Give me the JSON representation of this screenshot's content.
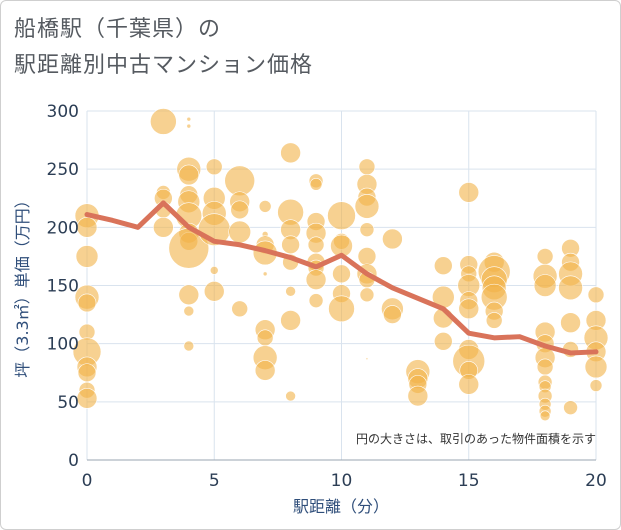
{
  "title_lines": [
    "船橋駅（千葉県）の",
    "駅距離別中古マンション価格"
  ],
  "colors": {
    "bubble": "#f2b348",
    "line": "#d9735a",
    "grid": "#d9e3ee",
    "axis_text": "#2c3e55",
    "axis_title": "#2f4e7a"
  },
  "chart_data": {
    "type": "scatter",
    "title": "船橋駅（千葉県）の駅距離別中古マンション価格",
    "xlabel": "駅距離（分）",
    "ylabel": "坪（3.3㎡）単価（万円）",
    "xlim": [
      0,
      20
    ],
    "ylim": [
      0,
      300
    ],
    "xticks": [
      0,
      5,
      10,
      15,
      20
    ],
    "yticks": [
      0,
      50,
      100,
      150,
      200,
      250,
      300
    ],
    "grid": true,
    "annotation": "円の大きさは、取引のあった物件面積を示す",
    "line": {
      "x": [
        0,
        1,
        2,
        3,
        4,
        5,
        6,
        7,
        8,
        9,
        10,
        11,
        12,
        13,
        14,
        15,
        16,
        17,
        18,
        19,
        20
      ],
      "y": [
        211,
        206,
        200,
        221,
        200,
        188,
        185,
        180,
        174,
        166,
        176,
        160,
        148,
        139,
        130,
        109,
        105,
        106,
        98,
        92,
        93
      ]
    },
    "bubbles": [
      {
        "x": 0,
        "y": 210,
        "s": 12
      },
      {
        "x": 0,
        "y": 200,
        "s": 10
      },
      {
        "x": 0,
        "y": 175,
        "s": 11
      },
      {
        "x": 0,
        "y": 140,
        "s": 12
      },
      {
        "x": 0,
        "y": 135,
        "s": 9
      },
      {
        "x": 0,
        "y": 110,
        "s": 8
      },
      {
        "x": 0,
        "y": 93,
        "s": 14
      },
      {
        "x": 0,
        "y": 80,
        "s": 10
      },
      {
        "x": 0,
        "y": 75,
        "s": 9
      },
      {
        "x": 0,
        "y": 60,
        "s": 8
      },
      {
        "x": 0,
        "y": 53,
        "s": 10
      },
      {
        "x": 3,
        "y": 291,
        "s": 13
      },
      {
        "x": 3,
        "y": 230,
        "s": 7
      },
      {
        "x": 3,
        "y": 225,
        "s": 9
      },
      {
        "x": 3,
        "y": 215,
        "s": 8
      },
      {
        "x": 3,
        "y": 200,
        "s": 10
      },
      {
        "x": 4,
        "y": 293,
        "s": 2
      },
      {
        "x": 4,
        "y": 287,
        "s": 2
      },
      {
        "x": 4,
        "y": 250,
        "s": 12
      },
      {
        "x": 4,
        "y": 245,
        "s": 10
      },
      {
        "x": 4,
        "y": 228,
        "s": 9
      },
      {
        "x": 4,
        "y": 222,
        "s": 11
      },
      {
        "x": 4,
        "y": 210,
        "s": 13
      },
      {
        "x": 4,
        "y": 195,
        "s": 10
      },
      {
        "x": 4,
        "y": 188,
        "s": 9
      },
      {
        "x": 4,
        "y": 182,
        "s": 20
      },
      {
        "x": 4,
        "y": 142,
        "s": 10
      },
      {
        "x": 4,
        "y": 128,
        "s": 5
      },
      {
        "x": 4,
        "y": 98,
        "s": 5
      },
      {
        "x": 5,
        "y": 252,
        "s": 8
      },
      {
        "x": 5,
        "y": 225,
        "s": 11
      },
      {
        "x": 5,
        "y": 212,
        "s": 12
      },
      {
        "x": 5,
        "y": 198,
        "s": 16
      },
      {
        "x": 5,
        "y": 163,
        "s": 4
      },
      {
        "x": 5,
        "y": 145,
        "s": 10
      },
      {
        "x": 6,
        "y": 240,
        "s": 15
      },
      {
        "x": 6,
        "y": 222,
        "s": 10
      },
      {
        "x": 6,
        "y": 215,
        "s": 9
      },
      {
        "x": 6,
        "y": 196,
        "s": 11
      },
      {
        "x": 6,
        "y": 130,
        "s": 8
      },
      {
        "x": 7,
        "y": 218,
        "s": 6
      },
      {
        "x": 7,
        "y": 194,
        "s": 3
      },
      {
        "x": 7,
        "y": 185,
        "s": 9
      },
      {
        "x": 7,
        "y": 178,
        "s": 12
      },
      {
        "x": 7,
        "y": 160,
        "s": 2
      },
      {
        "x": 7,
        "y": 112,
        "s": 10
      },
      {
        "x": 7,
        "y": 105,
        "s": 8
      },
      {
        "x": 7,
        "y": 88,
        "s": 12
      },
      {
        "x": 7,
        "y": 77,
        "s": 10
      },
      {
        "x": 8,
        "y": 264,
        "s": 10
      },
      {
        "x": 8,
        "y": 213,
        "s": 13
      },
      {
        "x": 8,
        "y": 198,
        "s": 10
      },
      {
        "x": 8,
        "y": 185,
        "s": 9
      },
      {
        "x": 8,
        "y": 170,
        "s": 8
      },
      {
        "x": 8,
        "y": 145,
        "s": 5
      },
      {
        "x": 8,
        "y": 120,
        "s": 10
      },
      {
        "x": 8,
        "y": 55,
        "s": 5
      },
      {
        "x": 9,
        "y": 240,
        "s": 7
      },
      {
        "x": 9,
        "y": 237,
        "s": 6
      },
      {
        "x": 9,
        "y": 205,
        "s": 9
      },
      {
        "x": 9,
        "y": 195,
        "s": 10
      },
      {
        "x": 9,
        "y": 185,
        "s": 8
      },
      {
        "x": 9,
        "y": 170,
        "s": 9
      },
      {
        "x": 9,
        "y": 165,
        "s": 8
      },
      {
        "x": 9,
        "y": 155,
        "s": 10
      },
      {
        "x": 9,
        "y": 137,
        "s": 7
      },
      {
        "x": 10,
        "y": 210,
        "s": 14
      },
      {
        "x": 10,
        "y": 188,
        "s": 8
      },
      {
        "x": 10,
        "y": 184,
        "s": 11
      },
      {
        "x": 10,
        "y": 160,
        "s": 9
      },
      {
        "x": 10,
        "y": 143,
        "s": 9
      },
      {
        "x": 10,
        "y": 130,
        "s": 13
      },
      {
        "x": 11,
        "y": 252,
        "s": 8
      },
      {
        "x": 11,
        "y": 237,
        "s": 10
      },
      {
        "x": 11,
        "y": 226,
        "s": 9
      },
      {
        "x": 11,
        "y": 218,
        "s": 12
      },
      {
        "x": 11,
        "y": 198,
        "s": 7
      },
      {
        "x": 11,
        "y": 175,
        "s": 9
      },
      {
        "x": 11,
        "y": 160,
        "s": 10
      },
      {
        "x": 11,
        "y": 155,
        "s": 8
      },
      {
        "x": 11,
        "y": 142,
        "s": 7
      },
      {
        "x": 11,
        "y": 87,
        "s": 1
      },
      {
        "x": 12,
        "y": 190,
        "s": 10
      },
      {
        "x": 12,
        "y": 130,
        "s": 11
      },
      {
        "x": 12,
        "y": 125,
        "s": 9
      },
      {
        "x": 13,
        "y": 76,
        "s": 12
      },
      {
        "x": 13,
        "y": 70,
        "s": 10
      },
      {
        "x": 13,
        "y": 65,
        "s": 9
      },
      {
        "x": 13,
        "y": 55,
        "s": 10
      },
      {
        "x": 14,
        "y": 167,
        "s": 9
      },
      {
        "x": 14,
        "y": 140,
        "s": 11
      },
      {
        "x": 14,
        "y": 122,
        "s": 10
      },
      {
        "x": 14,
        "y": 102,
        "s": 9
      },
      {
        "x": 15,
        "y": 230,
        "s": 10
      },
      {
        "x": 15,
        "y": 168,
        "s": 9
      },
      {
        "x": 15,
        "y": 160,
        "s": 8
      },
      {
        "x": 15,
        "y": 150,
        "s": 11
      },
      {
        "x": 15,
        "y": 137,
        "s": 9
      },
      {
        "x": 15,
        "y": 130,
        "s": 10
      },
      {
        "x": 15,
        "y": 95,
        "s": 10
      },
      {
        "x": 15,
        "y": 85,
        "s": 16
      },
      {
        "x": 15,
        "y": 77,
        "s": 9
      },
      {
        "x": 15,
        "y": 65,
        "s": 10
      },
      {
        "x": 16,
        "y": 170,
        "s": 10
      },
      {
        "x": 16,
        "y": 162,
        "s": 16
      },
      {
        "x": 16,
        "y": 155,
        "s": 13
      },
      {
        "x": 16,
        "y": 148,
        "s": 12
      },
      {
        "x": 16,
        "y": 140,
        "s": 13
      },
      {
        "x": 16,
        "y": 128,
        "s": 9
      },
      {
        "x": 16,
        "y": 120,
        "s": 8
      },
      {
        "x": 18,
        "y": 175,
        "s": 8
      },
      {
        "x": 18,
        "y": 158,
        "s": 12
      },
      {
        "x": 18,
        "y": 150,
        "s": 11
      },
      {
        "x": 18,
        "y": 110,
        "s": 10
      },
      {
        "x": 18,
        "y": 100,
        "s": 9
      },
      {
        "x": 18,
        "y": 88,
        "s": 10
      },
      {
        "x": 18,
        "y": 80,
        "s": 8
      },
      {
        "x": 18,
        "y": 67,
        "s": 7
      },
      {
        "x": 18,
        "y": 63,
        "s": 6
      },
      {
        "x": 18,
        "y": 55,
        "s": 7
      },
      {
        "x": 18,
        "y": 48,
        "s": 6
      },
      {
        "x": 18,
        "y": 42,
        "s": 6
      },
      {
        "x": 18,
        "y": 38,
        "s": 5
      },
      {
        "x": 19,
        "y": 182,
        "s": 9
      },
      {
        "x": 19,
        "y": 170,
        "s": 9
      },
      {
        "x": 19,
        "y": 160,
        "s": 12
      },
      {
        "x": 19,
        "y": 148,
        "s": 12
      },
      {
        "x": 19,
        "y": 118,
        "s": 10
      },
      {
        "x": 19,
        "y": 95,
        "s": 8
      },
      {
        "x": 19,
        "y": 45,
        "s": 7
      },
      {
        "x": 20,
        "y": 142,
        "s": 8
      },
      {
        "x": 20,
        "y": 120,
        "s": 10
      },
      {
        "x": 20,
        "y": 105,
        "s": 12
      },
      {
        "x": 20,
        "y": 93,
        "s": 10
      },
      {
        "x": 20,
        "y": 80,
        "s": 11
      },
      {
        "x": 20,
        "y": 64,
        "s": 6
      }
    ]
  }
}
